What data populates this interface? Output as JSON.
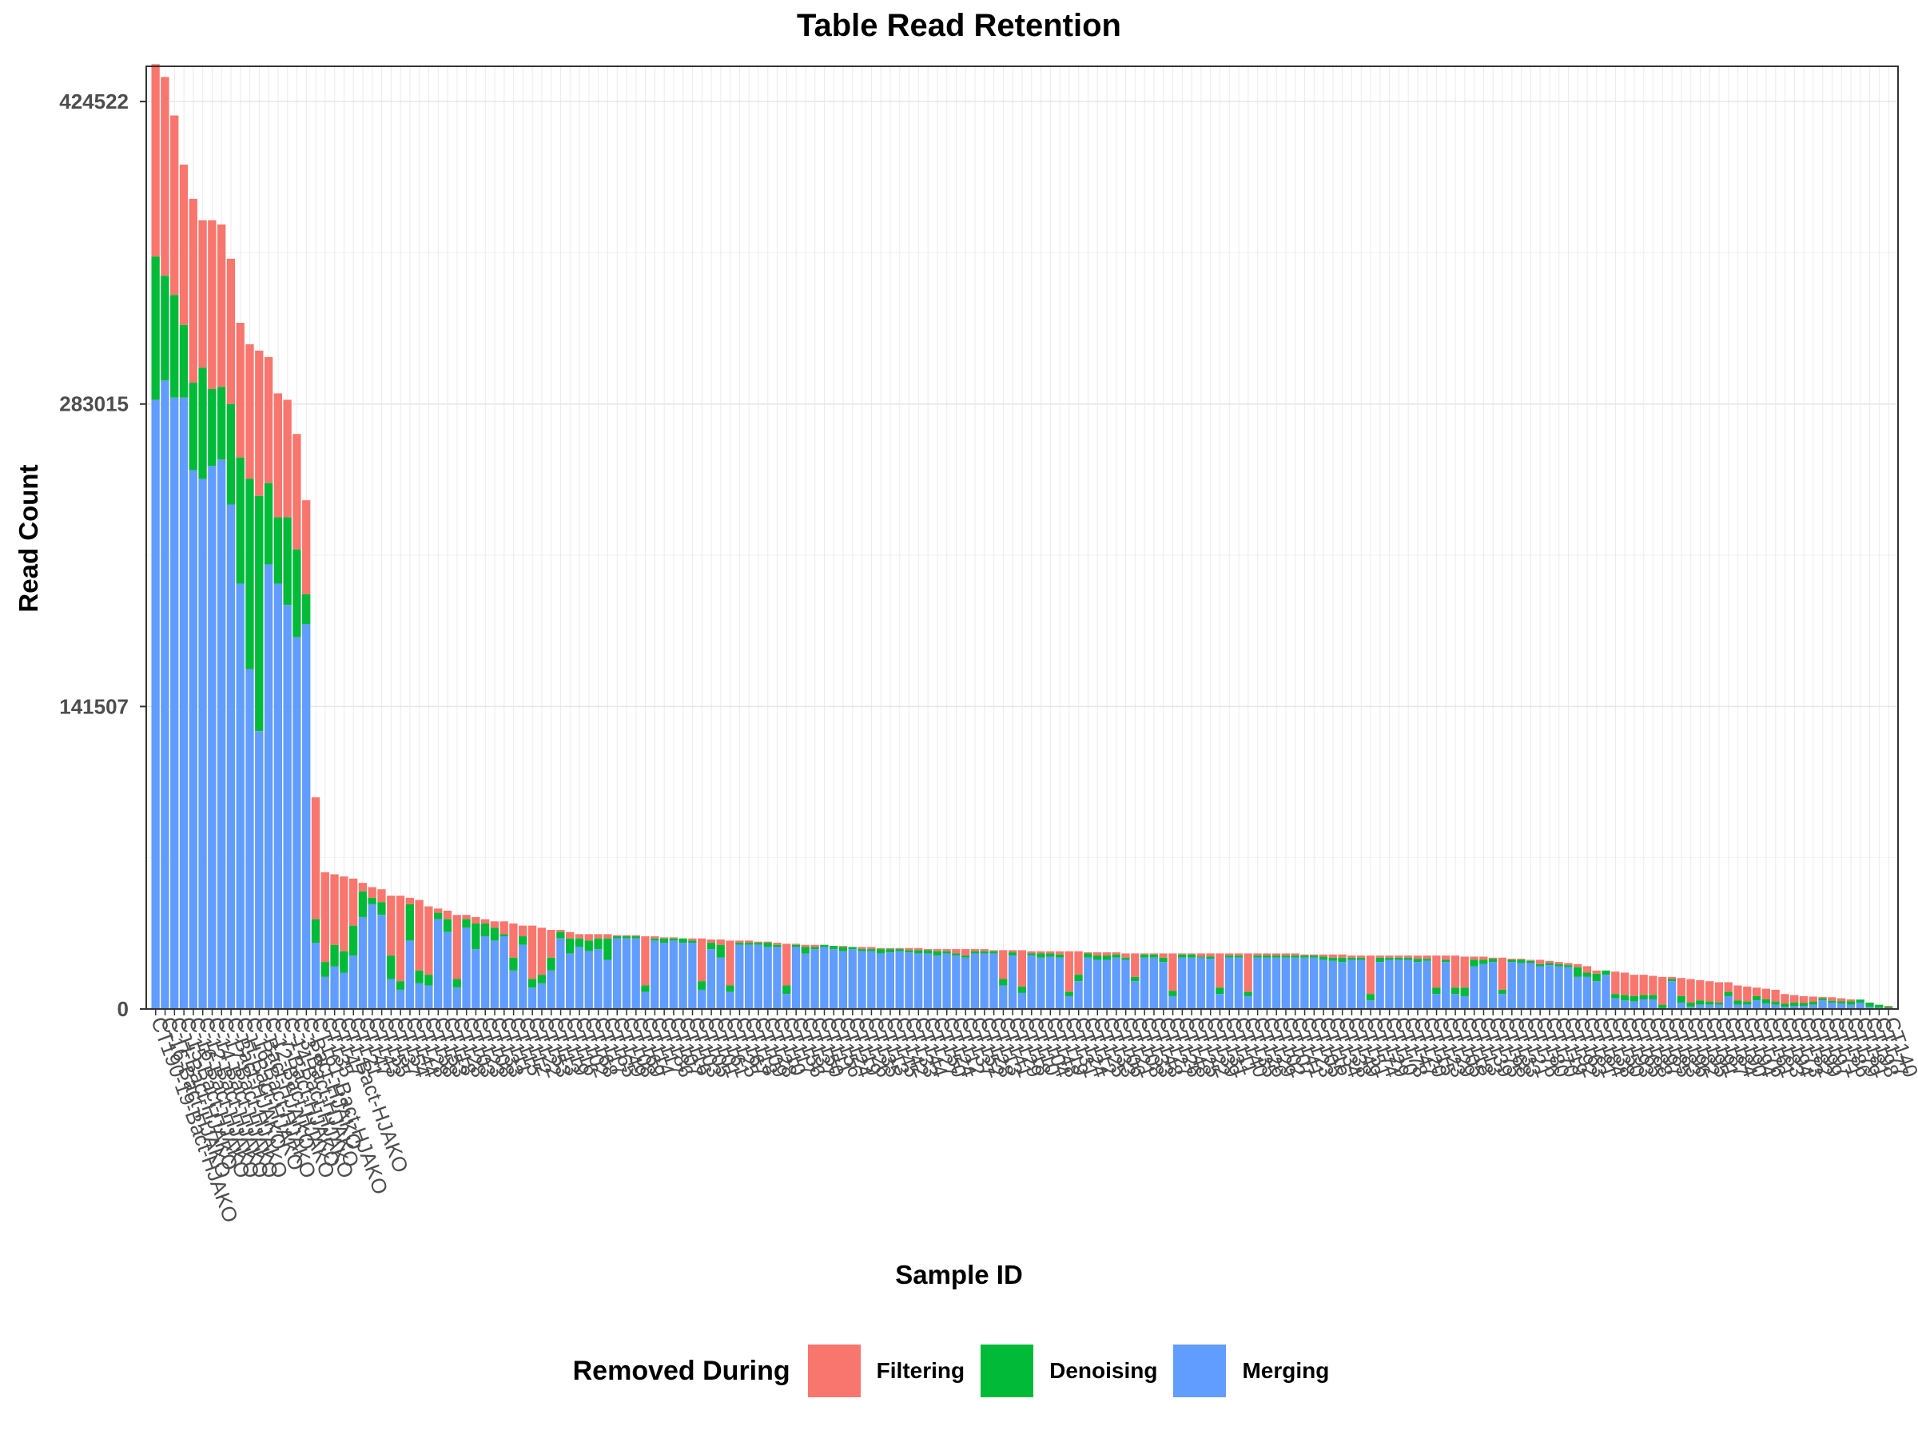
{
  "chart_data": {
    "type": "bar",
    "stacked": true,
    "title": "Table Read Retention",
    "xlabel": "Sample ID",
    "ylabel": "Read Count",
    "ylim": [
      0,
      441000
    ],
    "yticks": [
      0,
      141507,
      283015,
      424522
    ],
    "grid": true,
    "legend": {
      "title": "Removed During",
      "position": "bottom",
      "items": [
        {
          "name": "Filtering",
          "color": "#F8766D"
        },
        {
          "name": "Denoising",
          "color": "#00BA38"
        },
        {
          "name": "Merging",
          "color": "#619CFF"
        }
      ]
    },
    "totals": [
      442000,
      436000,
      418000,
      395000,
      379000,
      369000,
      369000,
      367000,
      351000,
      321000,
      311000,
      308000,
      305000,
      288000,
      285000,
      269000,
      238000,
      99000,
      64000,
      63000,
      62000,
      61000,
      59000,
      57000,
      56000,
      53000,
      53000,
      52000,
      51000,
      48000,
      47000,
      46000,
      44000,
      44000,
      43000,
      42000,
      41000,
      41000,
      40000,
      39000,
      39000,
      38000,
      37000,
      37000,
      36000,
      35000,
      35000,
      35000,
      35000,
      34500,
      34500,
      34500,
      34000,
      34000,
      33500,
      33500,
      33000,
      33000,
      33000,
      32500,
      32500,
      32000,
      32000,
      32000,
      31500,
      31500,
      31000,
      30500,
      30500,
      30000,
      30000,
      30000,
      29500,
      29500,
      29000,
      29000,
      29000,
      28500,
      28500,
      28500,
      28500,
      28500,
      28000,
      28000,
      28000,
      28000,
      28000,
      28000,
      28000,
      27500,
      27500,
      27500,
      27500,
      27000,
      27000,
      27000,
      27000,
      27000,
      27000,
      26500,
      26500,
      26500,
      26500,
      26000,
      26000,
      26000,
      26000,
      26000,
      26000,
      26000,
      26000,
      26000,
      26000,
      26000,
      26000,
      26000,
      26000,
      26000,
      26000,
      26000,
      26000,
      26000,
      25500,
      25500,
      25500,
      25500,
      25500,
      25000,
      25000,
      25000,
      25000,
      25000,
      25000,
      25000,
      25000,
      25000,
      25000,
      25000,
      25000,
      24500,
      24500,
      24500,
      24000,
      24000,
      23500,
      23500,
      23000,
      23000,
      22500,
      22000,
      21500,
      21000,
      20000,
      18000,
      18000,
      17500,
      17000,
      16000,
      16000,
      15500,
      15000,
      15000,
      14500,
      14000,
      13500,
      13000,
      12500,
      12500,
      11000,
      10500,
      10000,
      9500,
      9000,
      7000,
      6500,
      6000,
      5800,
      5600,
      5500,
      5000,
      4500,
      4000,
      3000,
      2000,
      1500
    ],
    "denoising_tops": [
      352000,
      343000,
      334000,
      320000,
      293000,
      300000,
      290000,
      291000,
      283000,
      258000,
      248000,
      240000,
      246000,
      230000,
      230000,
      215000,
      194000,
      42000,
      22000,
      30000,
      27000,
      39000,
      55000,
      52000,
      50000,
      25000,
      13000,
      49000,
      18000,
      16000,
      45000,
      42000,
      14000,
      42000,
      40000,
      40000,
      38000,
      35000,
      24000,
      34000,
      14000,
      16000,
      24000,
      36000,
      33000,
      33000,
      32000,
      33000,
      33000,
      34000,
      34000,
      34000,
      11000,
      33000,
      33000,
      33000,
      33000,
      32000,
      13000,
      31000,
      30000,
      11000,
      31000,
      31000,
      31000,
      31000,
      30000,
      11000,
      30000,
      29000,
      29000,
      30000,
      29500,
      29000,
      29000,
      28000,
      28000,
      28000,
      28000,
      28000,
      27500,
      27500,
      27500,
      27000,
      27000,
      26000,
      25000,
      27000,
      27000,
      27000,
      14000,
      26500,
      10500,
      26000,
      26000,
      26000,
      25500,
      8000,
      16000,
      26000,
      25000,
      25000,
      25500,
      24000,
      15000,
      25500,
      25500,
      24000,
      8500,
      25500,
      25500,
      24500,
      24500,
      10000,
      25000,
      25000,
      8000,
      25000,
      25000,
      25000,
      25000,
      25000,
      25000,
      25000,
      24500,
      24000,
      24000,
      24000,
      24000,
      7000,
      24000,
      24000,
      24000,
      24000,
      23500,
      23500,
      10000,
      23000,
      10000,
      10000,
      23000,
      23000,
      23500,
      9000,
      23000,
      23000,
      22500,
      21000,
      21500,
      21000,
      20500,
      19500,
      17000,
      16500,
      18000,
      7000,
      6500,
      6000,
      6500,
      6500,
      2000,
      14000,
      6000,
      3000,
      4000,
      3500,
      3000,
      8000,
      4000,
      3500,
      6000,
      4500,
      3500,
      2500,
      3000,
      2800,
      3500,
      5000,
      3800,
      3600,
      3600,
      4400,
      3000,
      2000,
      1000,
      1000
    ],
    "merging_values": [
      285000,
      294000,
      286000,
      286000,
      252000,
      248000,
      254000,
      257000,
      236000,
      199000,
      159000,
      130000,
      208000,
      199000,
      189000,
      174000,
      180000,
      31000,
      15000,
      20000,
      17000,
      25000,
      43000,
      49000,
      44000,
      14000,
      9000,
      32000,
      12000,
      11000,
      42000,
      36000,
      10000,
      38000,
      28000,
      34000,
      32000,
      34000,
      18000,
      30000,
      10000,
      12000,
      18000,
      33000,
      26000,
      29000,
      27000,
      28000,
      23000,
      33000,
      33000,
      33000,
      8000,
      32000,
      31000,
      32000,
      31000,
      31000,
      9000,
      28000,
      24000,
      8000,
      30000,
      30000,
      30000,
      29000,
      29000,
      7000,
      29000,
      26000,
      28000,
      29000,
      28000,
      27000,
      28000,
      27000,
      27000,
      26000,
      26500,
      27000,
      26500,
      26000,
      26000,
      25000,
      26000,
      25000,
      24000,
      26000,
      26000,
      26000,
      11000,
      25000,
      7500,
      25000,
      24000,
      24500,
      24000,
      6000,
      13000,
      24000,
      23000,
      23000,
      24000,
      23000,
      13000,
      24000,
      24000,
      22000,
      6000,
      24000,
      24000,
      24000,
      23500,
      7000,
      24000,
      24000,
      6000,
      24000,
      24000,
      24000,
      24000,
      24000,
      24000,
      24000,
      23000,
      22500,
      22000,
      23000,
      23000,
      4000,
      22000,
      23000,
      23000,
      23000,
      22000,
      22500,
      7000,
      22000,
      7000,
      6000,
      20000,
      21000,
      22000,
      7000,
      22000,
      21500,
      21500,
      20000,
      20500,
      20000,
      19500,
      15000,
      15000,
      13000,
      16000,
      5000,
      4000,
      3500,
      4500,
      4500,
      400,
      13000,
      3000,
      1000,
      2000,
      2000,
      2000,
      6000,
      2000,
      2000,
      4000,
      2500,
      2000,
      1000,
      1500,
      1500,
      2000,
      4000,
      3000,
      2500,
      2000,
      3000,
      1000,
      500,
      200,
      100
    ],
    "categories": [
      "CT190-19-Bact-HJAKO",
      "C-16-Bact-HJAKO",
      "C-H-Bact-HJAKO",
      "C-15-Bact-HJAKO",
      "C-16-Bact-HJAKO",
      "C-12-Bact-HJAKO",
      "C-14-Bact-HJAKO",
      "C-17-Bact-HJAKO",
      "C-Bact-HJAKO",
      "C-H-Bact-HJAKO",
      "C-16-Bact-HJAKO",
      "C-Bact-HJAKO",
      "C-12-Bact-HJAKO",
      "C-7-Bact-HJAKO",
      "C-14-Bact-HJAKO",
      "C-3-Bact-HJAKO",
      "C-Bact-HJAKO",
      "CT161-Bact-HJAKO",
      "CT135",
      "CT147",
      "CT1-Bact-HJAKO",
      "CT121",
      "CT147",
      "CT143",
      "CT155",
      "CT137",
      "CT154",
      "CT144",
      "CT128",
      "CT158",
      "CT153",
      "CT118",
      "CT128",
      "CT103",
      "CT123",
      "CT108",
      "CT133",
      "CT111",
      "CT115",
      "CT112",
      "CT122",
      "CT153",
      "CT113",
      "CT119",
      "CT116",
      "CT102",
      "CT168",
      "CT117",
      "CT165",
      "CT149",
      "CT108",
      "CT169",
      "CT114",
      "CT117",
      "CT186",
      "CT107",
      "CT116",
      "CT103",
      "CT105",
      "CT101",
      "CT161",
      "CT125",
      "CT167",
      "CT118",
      "CT109",
      "CT128",
      "CT110",
      "CT117",
      "CT156",
      "CT137",
      "CT150",
      "CT111",
      "CT156",
      "CT124",
      "CT119",
      "CT126",
      "CT135",
      "CT113",
      "CT145",
      "CT142",
      "CT133",
      "CT144",
      "CT127",
      "CT150",
      "CT124",
      "CT112",
      "CT137",
      "CT152",
      "CT128",
      "CT113",
      "CT141",
      "CT129",
      "CT118",
      "CT110",
      "CT104",
      "CT148",
      "CT119",
      "CT131",
      "CT124",
      "CT112",
      "CT125",
      "CT133",
      "CT106",
      "CT121",
      "CT108",
      "CT133",
      "CT148",
      "CT127",
      "CT126",
      "CT148",
      "CT125",
      "CT122",
      "CT139",
      "CT131",
      "CT111",
      "CT140",
      "CT135",
      "CT126",
      "CT129",
      "CT102",
      "CT107",
      "CT141",
      "CT123",
      "CT105",
      "CT116",
      "CT134",
      "CT138",
      "CT149",
      "CT151",
      "CT174",
      "CT129",
      "CT110",
      "CT178",
      "CT147",
      "CT120",
      "CT115",
      "CT123",
      "CT129",
      "CT105",
      "CT118",
      "CT113",
      "CT139",
      "CT175",
      "CT168",
      "CT133",
      "CT121",
      "CT176",
      "CT180",
      "CT170",
      "CT119",
      "CT192",
      "CT163",
      "CT181",
      "CT184",
      "CT138",
      "CT150",
      "CT193",
      "CT165",
      "CT188",
      "CT197",
      "CT185",
      "CT183",
      "CT196",
      "CT182",
      "CT195",
      "CT191",
      "CT187",
      "CT184",
      "CT190",
      "CT194",
      "CT176",
      "CT161",
      "CT183",
      "CT194",
      "CT173",
      "CT182",
      "CT199",
      "CT197",
      "CT171",
      "CT186",
      "CT179",
      "CT181",
      "CT198",
      "CT177",
      "CT140"
    ]
  }
}
